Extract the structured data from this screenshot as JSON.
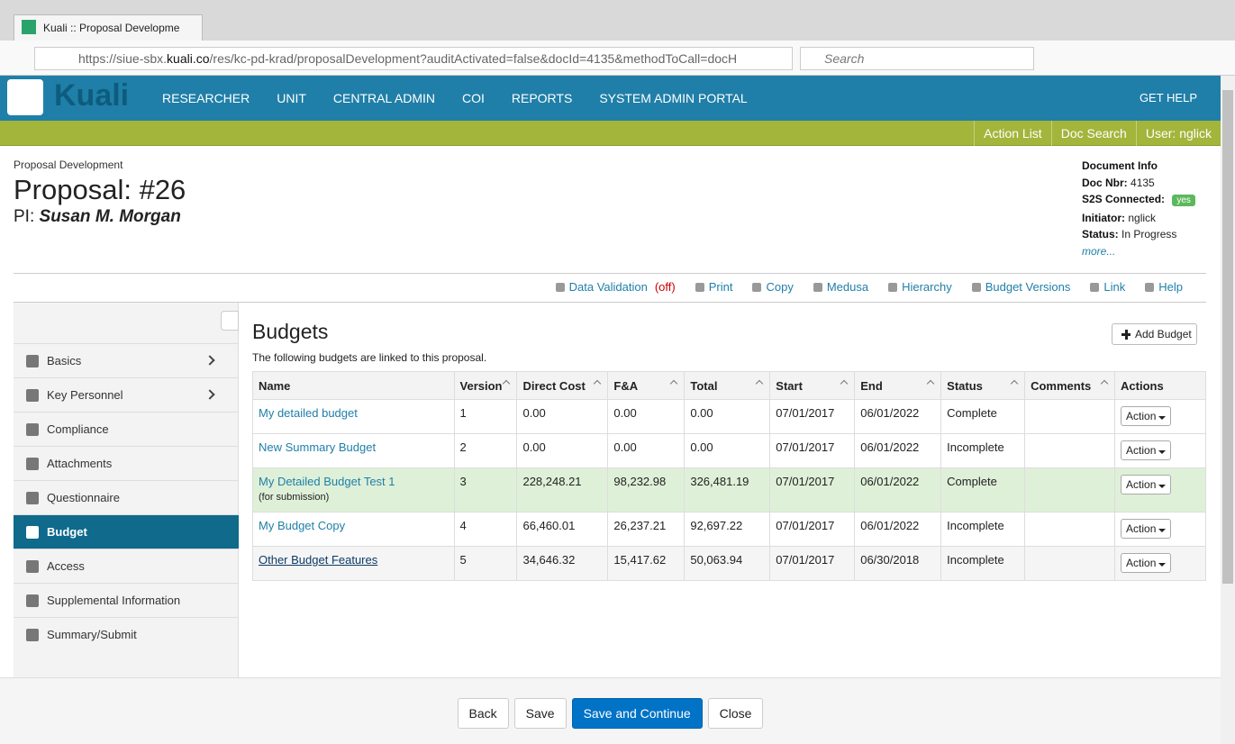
{
  "browser": {
    "tab_title": "Kuali :: Proposal Developme",
    "url_prefix": "https://siue-sbx.",
    "url_domain": "kuali.co",
    "url_rest": "/res/kc-pd-krad/proposalDevelopment?auditActivated=false&docId=4135&methodToCall=docH",
    "search_placeholder": "Search"
  },
  "nav": {
    "logo": "Kuali",
    "menu": [
      "RESEARCHER",
      "UNIT",
      "CENTRAL ADMIN",
      "COI",
      "REPORTS",
      "SYSTEM ADMIN PORTAL"
    ],
    "help": "GET HELP"
  },
  "subnav": [
    "Action List",
    "Doc Search",
    "User: nglick"
  ],
  "header": {
    "breadcrumb": "Proposal Development",
    "title": "Proposal: #26",
    "pi_label": "PI:",
    "pi_name": "Susan M. Morgan"
  },
  "doc_info": {
    "title": "Document Info",
    "fields": [
      {
        "label": "Doc Nbr:",
        "value": "4135"
      },
      {
        "label": "S2S Connected:",
        "value": "yes"
      },
      {
        "label": "Initiator:",
        "value": "nglick"
      },
      {
        "label": "Status:",
        "value": "In Progress"
      }
    ],
    "more": "more..."
  },
  "toolbar": {
    "data_validation": "Data Validation",
    "validation_state": "(off)",
    "items": [
      "Print",
      "Copy",
      "Medusa",
      "Hierarchy",
      "Budget Versions",
      "Link",
      "Help"
    ]
  },
  "sidebar": {
    "items": [
      "Basics",
      "Key Personnel",
      "Compliance",
      "Attachments",
      "Questionnaire",
      "Budget",
      "Access",
      "Supplemental Information",
      "Summary/Submit"
    ]
  },
  "content": {
    "title": "Budgets",
    "add_button": "Add Budget",
    "description": "The following budgets are linked to this proposal.",
    "table": {
      "columns": [
        "Name",
        "Version",
        "Direct Cost",
        "F&A",
        "Total",
        "Start",
        "End",
        "Status",
        "Comments",
        "Actions"
      ],
      "rows": [
        {
          "cells": [
            "My detailed budget",
            "1",
            "0.00",
            "0.00",
            "0.00",
            "07/01/2017",
            "06/01/2022",
            "Complete"
          ]
        },
        {
          "cells": [
            "New Summary Budget",
            "2",
            "0.00",
            "0.00",
            "0.00",
            "07/01/2017",
            "06/01/2022",
            "Incomplete"
          ]
        },
        {
          "cells": [
            "My Detailed Budget Test 1",
            "3",
            "228,248.21",
            "98,232.98",
            "326,481.19",
            "07/01/2017",
            "06/01/2022",
            "Complete"
          ],
          "note": "(for submission)"
        },
        {
          "cells": [
            "My Budget Copy",
            "4",
            "66,460.01",
            "26,237.21",
            "92,697.22",
            "07/01/2017",
            "06/01/2022",
            "Incomplete"
          ]
        },
        {
          "cells": [
            "Other Budget Features",
            "5",
            "34,646.32",
            "15,417.62",
            "50,063.94",
            "07/01/2017",
            "06/30/2018",
            "Incomplete"
          ]
        }
      ],
      "action_label": "Action"
    }
  },
  "footer": {
    "buttons": [
      "Back",
      "Save",
      "Save and Continue",
      "Close"
    ]
  }
}
